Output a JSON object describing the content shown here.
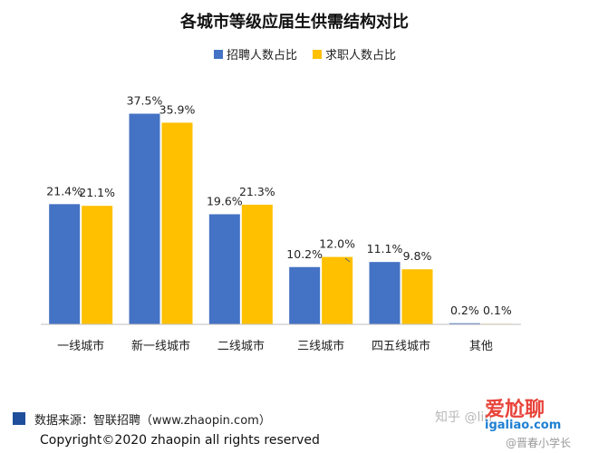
{
  "colors": {
    "recruit": "#4472c4",
    "apply": "#ffc000",
    "axis": "#bfbfbf",
    "source_square": "#1f4e9b"
  },
  "chart_data": {
    "type": "bar",
    "title": "各城市等级应届生供需结构对比",
    "categories": [
      "一线城市",
      "新一线城市",
      "二线城市",
      "三线城市",
      "四五线城市",
      "其他"
    ],
    "series": [
      {
        "name": "招聘人数占比",
        "values": [
          21.4,
          37.5,
          19.6,
          10.2,
          11.1,
          0.2
        ],
        "labels": [
          "21.4%",
          "37.5%",
          "19.6%",
          "10.2%",
          "11.1%",
          "0.2%"
        ]
      },
      {
        "name": "求职人数占比",
        "values": [
          21.1,
          35.9,
          21.3,
          12.0,
          9.8,
          0.1
        ],
        "labels": [
          "21.1%",
          "35.9%",
          "21.3%",
          "12.0%",
          "9.8%",
          "0.1%"
        ]
      }
    ],
    "ylim": [
      0,
      40
    ],
    "legend_position": "top",
    "grid": false
  },
  "footer": {
    "source": "数据来源：智联招聘（www.zhaopin.com）",
    "copyright": "Copyright©2020 zhaopin all rights reserved"
  },
  "watermark": {
    "zhihu": "知乎 @lin",
    "brand": "爱尬聊",
    "url": "igaliao.com",
    "author": "@晋春小学长"
  }
}
